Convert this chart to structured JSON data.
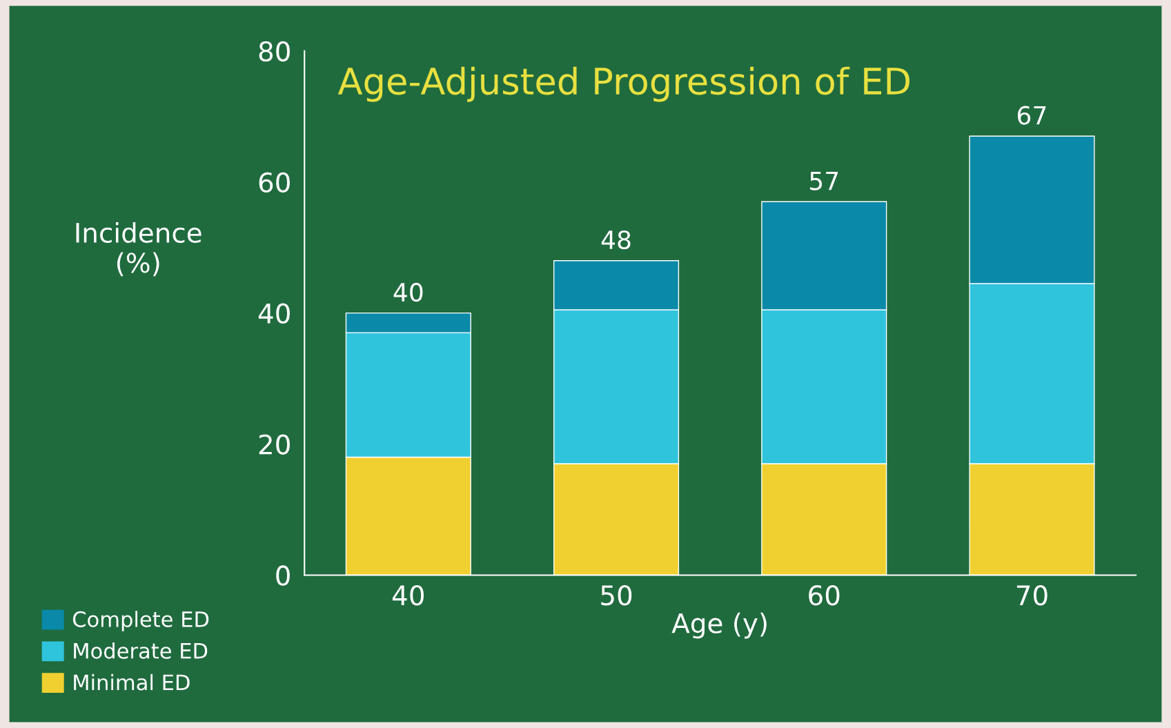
{
  "chart_data": {
    "type": "bar",
    "title": "Age-Adjusted Progression of ED",
    "xlabel": "Age (y)",
    "ylabel": "Incidence\n(%)",
    "categories": [
      "40",
      "50",
      "60",
      "70"
    ],
    "stacked": true,
    "series": [
      {
        "name": "Minimal ED",
        "color": "#f0d030",
        "values": [
          18,
          17,
          17,
          17
        ]
      },
      {
        "name": "Moderate ED",
        "color": "#30c4dc",
        "values": [
          19,
          23.5,
          23.5,
          27.5
        ]
      },
      {
        "name": "Complete ED",
        "color": "#0a8aa8",
        "values": [
          3,
          7.5,
          16.5,
          22.5
        ]
      }
    ],
    "totals": [
      "40",
      "48",
      "57",
      "67"
    ],
    "ylim": [
      0,
      80
    ],
    "yticks": [
      0,
      20,
      40,
      60,
      80
    ],
    "grid": false,
    "legend": "bottom left"
  }
}
